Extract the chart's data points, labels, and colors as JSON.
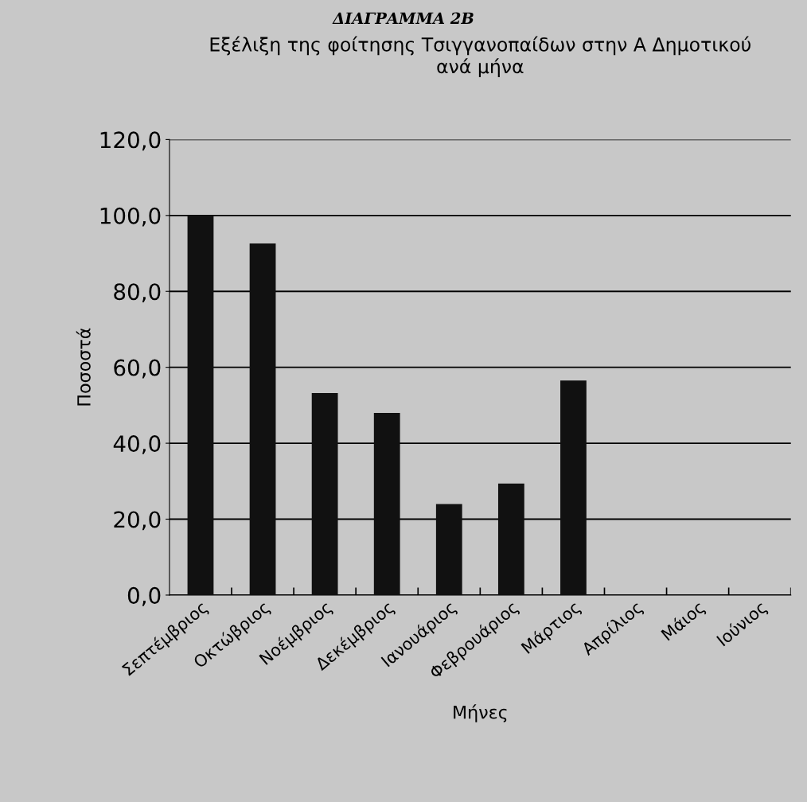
{
  "chart_data": {
    "type": "bar",
    "title": "Εξέλιξη της φοίτησης Τσιγγανοπαίδων στην Α Δημοτικού\nανά μήνα",
    "annotations": [
      "ΔΙΑΓΡΑΜΜΑ 2Β"
    ],
    "xlabel": "Μήνες",
    "ylabel": "Ποσοστά",
    "categories": [
      "Σεπτέμβριος",
      "Οκτώβριος",
      "Νοέμβριος",
      "Δεκέμβριος",
      "Ιανουάριος",
      "Φεβρουάριος",
      "Μάρτιος",
      "Απρίλιος",
      "Μάιος",
      "Ιούνιος"
    ],
    "values": [
      100,
      92.6,
      53.2,
      48,
      24,
      29.4,
      56.5,
      null,
      null,
      null
    ],
    "color": "#111111",
    "ylim": [
      0,
      120
    ],
    "yticks": [
      {
        "value": 0,
        "label": "0,0"
      },
      {
        "value": 20,
        "label": "20,0"
      },
      {
        "value": 40,
        "label": "40,0"
      },
      {
        "value": 60,
        "label": "60,0"
      },
      {
        "value": 80,
        "label": "80,0"
      },
      {
        "value": 100,
        "label": "100,0"
      },
      {
        "value": 120,
        "label": "120,0"
      }
    ],
    "grid": "y",
    "legend": false
  }
}
